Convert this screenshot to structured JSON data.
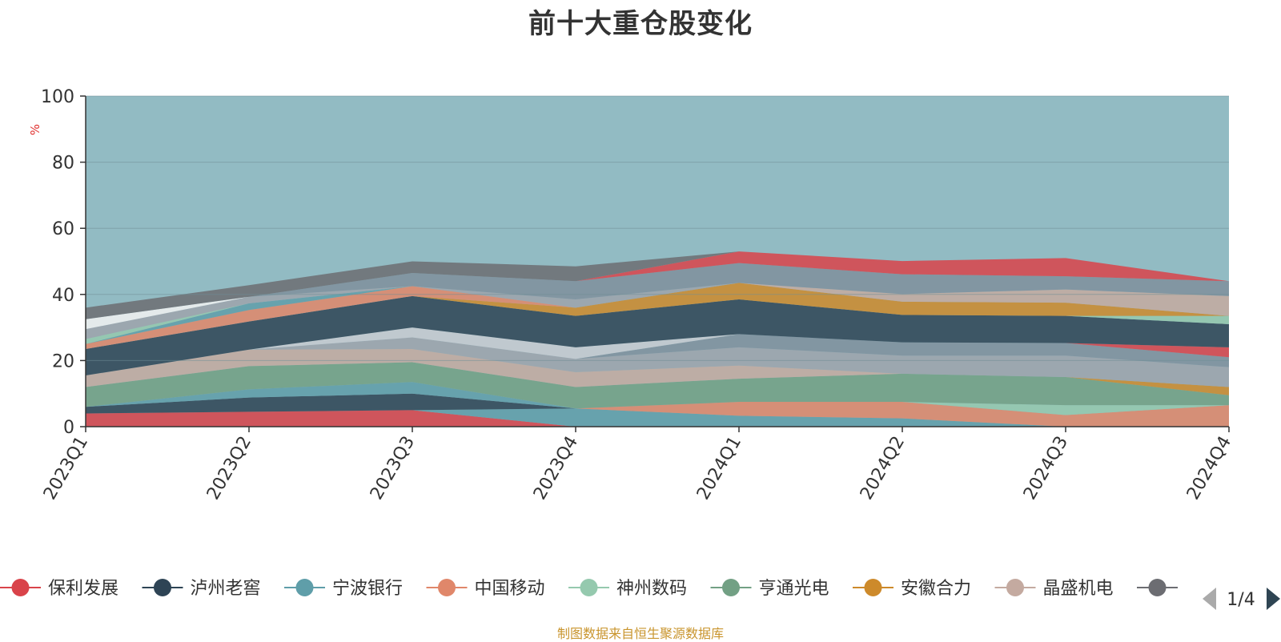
{
  "source_note": "制图数据来自恒生聚源数据库",
  "pager": {
    "text": "1/4"
  },
  "colors": {
    "background_band": "#92bbc3",
    "series": [
      "#d9434a",
      "#2e4455",
      "#5f9ea9",
      "#e0876a",
      "#95c9ae",
      "#72a084",
      "#cd8a2b",
      "#c4aaa0",
      "#6c6d72",
      "#9ea3ac",
      "#c8cbd1",
      "#7f8f9c",
      "#f2f2f2"
    ]
  },
  "chart_data": {
    "type": "area",
    "title": "前十大重仓股变化",
    "ylabel": "%",
    "xlabel": "",
    "ylim": [
      0,
      100
    ],
    "yticks": [
      0,
      20,
      40,
      60,
      80,
      100
    ],
    "categories": [
      "2023Q1",
      "2023Q2",
      "2023Q3",
      "2023Q4",
      "2024Q1",
      "2024Q2",
      "2024Q3",
      "2024Q4"
    ],
    "grid": true,
    "legend_position": "bottom",
    "legend": [
      {
        "name": "保利发展",
        "color": "#d9434a"
      },
      {
        "name": "泸州老窖",
        "color": "#2e4455"
      },
      {
        "name": "宁波银行",
        "color": "#5f9ea9"
      },
      {
        "name": "中国移动",
        "color": "#e0876a"
      },
      {
        "name": "神州数码",
        "color": "#95c9ae"
      },
      {
        "name": "亨通光电",
        "color": "#72a084"
      },
      {
        "name": "安徽合力",
        "color": "#cd8a2b"
      },
      {
        "name": "晶盛机电",
        "color": "#c4aaa0"
      },
      {
        "name": "",
        "color": "#6c6d72"
      }
    ],
    "series": [
      {
        "color": "#d9434a",
        "values": [
          4,
          4.5,
          5,
          0,
          0,
          0,
          0,
          0
        ]
      },
      {
        "color": "#5f9ea9",
        "values": [
          0,
          0,
          0,
          5.5,
          3.3,
          2.5,
          0,
          0
        ]
      },
      {
        "color": "#e0876a",
        "values": [
          0,
          0,
          0,
          0,
          4.2,
          5,
          3.5,
          6.5
        ]
      },
      {
        "color": "#95c9ae",
        "values": [
          0,
          0,
          0,
          0,
          0,
          0,
          3,
          0
        ]
      },
      {
        "color": "#2e4455",
        "values": [
          2,
          4.3,
          5,
          0,
          0,
          0,
          0,
          0
        ]
      },
      {
        "color": "#5f9ea9",
        "values": [
          0,
          2.5,
          3.5,
          0,
          0,
          0,
          0,
          0
        ]
      },
      {
        "color": "#72a084",
        "values": [
          6,
          7,
          6,
          6.5,
          7,
          8.5,
          8.5,
          3
        ]
      },
      {
        "color": "#cd8a2b",
        "values": [
          0,
          0,
          0,
          0,
          0,
          0,
          0,
          2.5
        ]
      },
      {
        "color": "#c4aaa0",
        "values": [
          3.5,
          5,
          4,
          4.5,
          4,
          0,
          0,
          0
        ]
      },
      {
        "color": "#9ea3ac",
        "values": [
          0,
          0,
          3.5,
          4,
          5.5,
          5.5,
          6.5,
          6
        ]
      },
      {
        "color": "#7f8f9c",
        "values": [
          0,
          0,
          0,
          0,
          4,
          4,
          3.8,
          3
        ]
      },
      {
        "color": "#d9434a",
        "values": [
          0,
          0,
          0,
          0,
          0,
          0,
          0,
          3
        ]
      },
      {
        "color": "#c8cbd1",
        "values": [
          0,
          0,
          3,
          3.5,
          0,
          0,
          0,
          0
        ]
      },
      {
        "color": "#2e4455",
        "values": [
          8,
          8.5,
          9.5,
          9.5,
          10.5,
          8.3,
          8.2,
          7
        ]
      },
      {
        "color": "#95c9ae",
        "values": [
          0,
          0,
          0,
          0,
          0,
          0,
          0,
          2.5
        ]
      },
      {
        "color": "#cd8a2b",
        "values": [
          0,
          0,
          0,
          2.5,
          5,
          4,
          4,
          0
        ]
      },
      {
        "color": "#e0876a",
        "values": [
          1.5,
          3.5,
          3,
          0,
          0,
          0,
          0,
          0
        ]
      },
      {
        "color": "#5f9ea9",
        "values": [
          0,
          2,
          0,
          0,
          0,
          0,
          0,
          0
        ]
      },
      {
        "color": "#95c9ae",
        "values": [
          1.5,
          0,
          0,
          0,
          0,
          0,
          0,
          0
        ]
      },
      {
        "color": "#c4aaa0",
        "values": [
          0,
          0,
          0,
          0,
          0,
          2.3,
          4,
          6
        ]
      },
      {
        "color": "#9ea3ac",
        "values": [
          3,
          2,
          0,
          2.5,
          0,
          0,
          0,
          0
        ]
      },
      {
        "color": "#7f8f9c",
        "values": [
          0,
          0,
          4,
          5.5,
          6,
          6,
          4,
          4.5
        ]
      },
      {
        "color": "#f2f2f2",
        "values": [
          3,
          0,
          0,
          0,
          0,
          0,
          0,
          0
        ]
      },
      {
        "color": "#d9434a",
        "values": [
          0,
          0,
          0,
          0,
          3.5,
          4,
          5.5,
          0
        ]
      },
      {
        "color": "#6c6d72",
        "values": [
          3.5,
          3.5,
          3.5,
          4.5,
          0,
          0,
          0,
          0
        ]
      }
    ]
  }
}
